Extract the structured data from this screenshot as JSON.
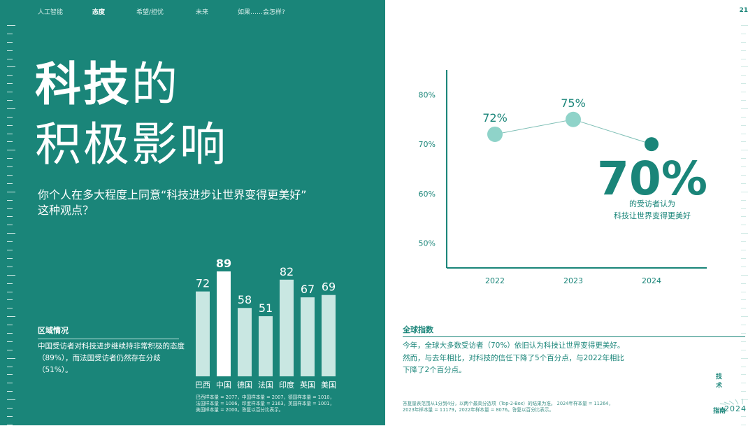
{
  "nav": [
    "人工智能",
    "态度",
    "希望/担忧",
    "未来",
    "如果……会怎样?"
  ],
  "page_number": "21",
  "title": {
    "bold": "科技",
    "light1": "的",
    "line2": "积极影响"
  },
  "question_line1": "你个人在多大程度上同意“科技进步让世界变得更美好”",
  "question_line2": "这种观点？",
  "region": {
    "heading": "区域情况",
    "text": "中国受访者对科技进步继续持非常积极的态度（89%），而法国受访者仍然存在分歧（51%）。"
  },
  "samples_line1": "巴西样本量 = 2077，中国样本量 = 2007，德国样本量 = 1010，",
  "samples_line2": "法国样本量 = 1006，印度样本量 = 2163，英国样本量 = 1001，",
  "samples_line3": "美国样本量 = 2000。答复以百分比表示。",
  "global": {
    "heading": "全球指数",
    "line1": "今年，全球大多数受访者（70%）依旧认为科技让世界变得更美好。",
    "line2": "然而，与去年相比，对科技的信任下降了5个百分点，与2022年相比",
    "line3": "下降了2个百分点。",
    "note_line1": "答复量表范围从1分到4分，以两个最高分选项（Top-2-Box）的结果为准。 2024年样本量 = 11264，",
    "note_line2": "2023年样本量 = 11179，2022年样本量 = 8076。答复以百分比表示。"
  },
  "brand_text": "技术",
  "guide_label": "指南",
  "guide_year": "2024",
  "colors": {
    "teal": "#1a8579",
    "light_bar": "#c9e7e2",
    "highlight_bar": "#ffffff",
    "dot_light": "#8fd3c9",
    "dot_dark": "#1a8579"
  },
  "chart_data": [
    {
      "type": "bar",
      "categories": [
        "巴西",
        "中国",
        "德国",
        "法国",
        "印度",
        "英国",
        "美国"
      ],
      "values": [
        72,
        89,
        58,
        51,
        82,
        67,
        69
      ],
      "value_labels": [
        "72",
        "89",
        "58",
        "51",
        "82",
        "67",
        "69"
      ],
      "highlight": "中国"
    },
    {
      "type": "line",
      "x": [
        "2022",
        "2023",
        "2024"
      ],
      "y": [
        72,
        75,
        70
      ],
      "point_labels": [
        "72%",
        "75%",
        ""
      ],
      "yticks": [
        "80%",
        "70%",
        "60%",
        "50%"
      ],
      "ytick_values": [
        80,
        70,
        60,
        50
      ],
      "ylim": [
        45,
        85
      ],
      "callout_value": "70%",
      "callout_line1": "的受访者认为",
      "callout_line2": "科技让世界变得更美好"
    }
  ]
}
